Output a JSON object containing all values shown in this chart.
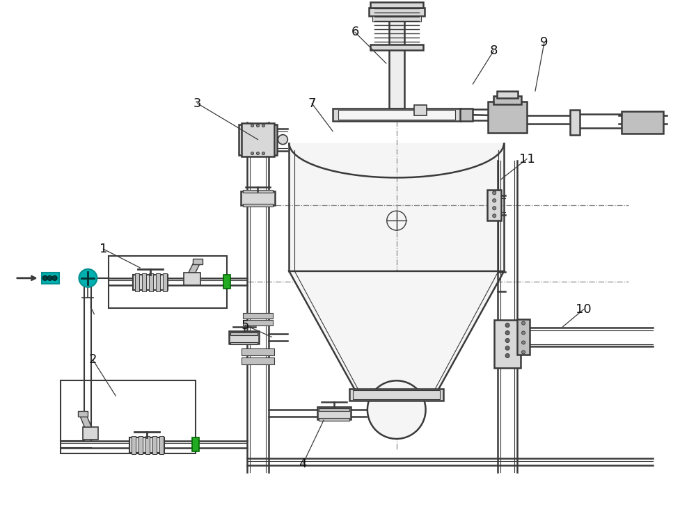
{
  "bg_color": "#ffffff",
  "lc": "#3a3a3a",
  "lc2": "#555555",
  "fc_vessel": "#f5f5f5",
  "fc_pipe": "#eeeeee",
  "fc_flange": "#d8d8d8",
  "fc_dark": "#c0c0c0",
  "cyan1": "#00b0b0",
  "cyan2": "#009090",
  "figsize": [
    10.0,
    7.29
  ],
  "dpi": 100
}
